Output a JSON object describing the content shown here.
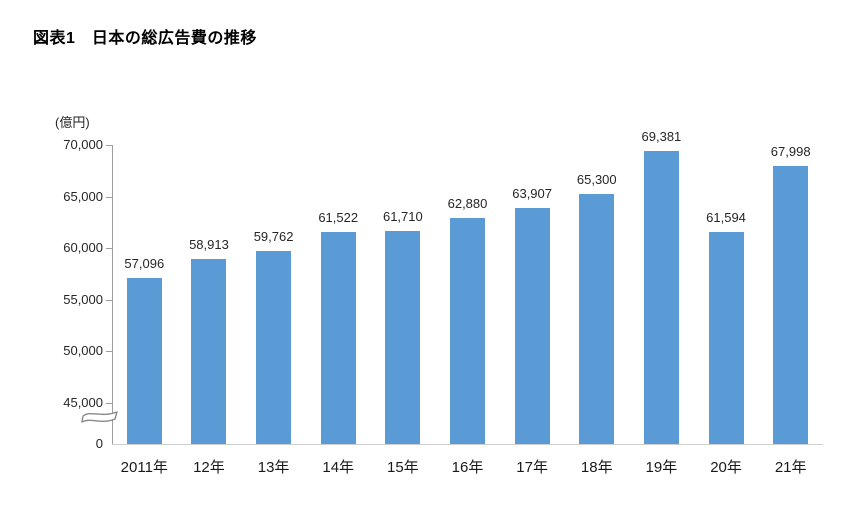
{
  "header": {
    "title": "図表1　日本の総広告費の推移"
  },
  "chart_data": {
    "type": "bar",
    "title": "図表1　日本の総広告費の推移",
    "unit_label": "(億円)",
    "categories": [
      "2011年",
      "12年",
      "13年",
      "14年",
      "15年",
      "16年",
      "17年",
      "18年",
      "19年",
      "20年",
      "21年"
    ],
    "values": [
      57096,
      58913,
      59762,
      61522,
      61710,
      62880,
      63907,
      65300,
      69381,
      61594,
      67998
    ],
    "value_labels": [
      "57,096",
      "58,913",
      "59,762",
      "61,522",
      "61,710",
      "62,880",
      "63,907",
      "65,300",
      "69,381",
      "61,594",
      "67,998"
    ],
    "xlabel": "",
    "ylabel": "(億円)",
    "yticks": [
      0,
      45000,
      50000,
      55000,
      60000,
      65000,
      70000
    ],
    "ytick_labels": [
      "0",
      "45,000",
      "50,000",
      "55,000",
      "60,000",
      "65,000",
      "70,000"
    ],
    "axis_break": true,
    "break_between": [
      0,
      45000
    ],
    "ylim": [
      0,
      70000
    ],
    "grid": false,
    "legend": null,
    "colors": {
      "bar": "#5B9BD5",
      "axis_line": "#9e9e9e",
      "baseline": "#cfcfcf",
      "text": "#262626",
      "title": "#000000"
    }
  }
}
